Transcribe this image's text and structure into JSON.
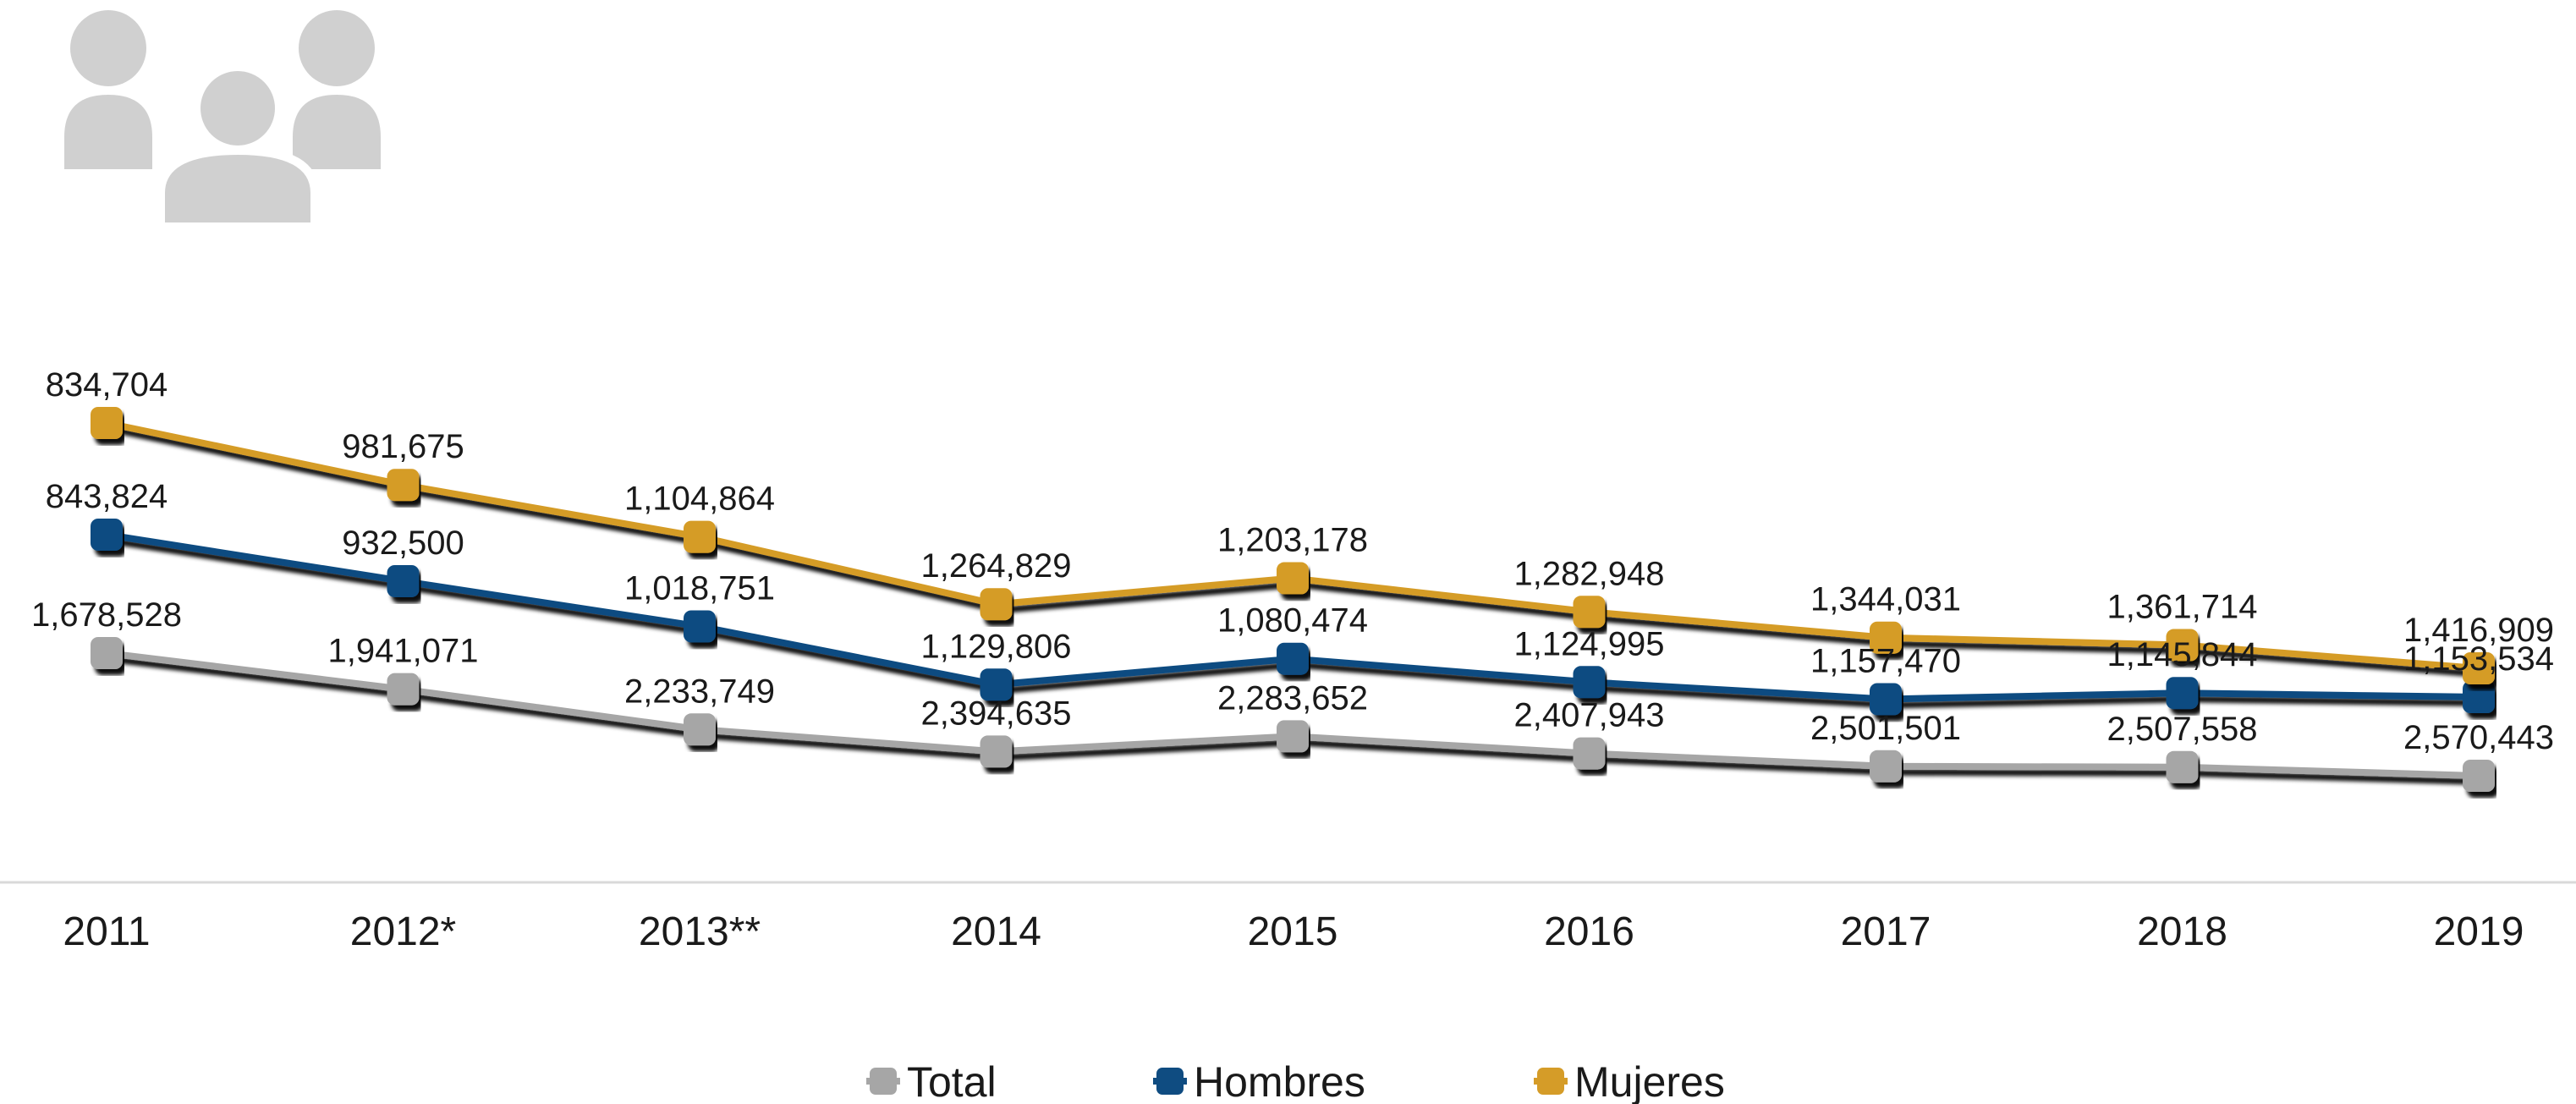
{
  "chart_data": {
    "type": "line",
    "categories": [
      "2011",
      "2012*",
      "2013**",
      "2014",
      "2015",
      "2016",
      "2017",
      "2018",
      "2019"
    ],
    "series": [
      {
        "name": "Total",
        "color": "#a6a6a6",
        "values": [
          1678528,
          1941071,
          2233749,
          2394635,
          2283652,
          2407943,
          2501501,
          2507558,
          2570443
        ],
        "labels": [
          "1,678,528",
          "1,941,071",
          "2,233,749",
          "2,394,635",
          "2,283,652",
          "2,407,943",
          "2,501,501",
          "2,507,558",
          "2,570,443"
        ]
      },
      {
        "name": "Hombres",
        "color": "#0f4c81",
        "values": [
          843824,
          932500,
          1018751,
          1129806,
          1080474,
          1124995,
          1157470,
          1145844,
          1153534
        ],
        "labels": [
          "843,824",
          "932,500",
          "1,018,751",
          "1,129,806",
          "1,080,474",
          "1,124,995",
          "1,157,470",
          "1,145,844",
          "1,153,534"
        ]
      },
      {
        "name": "Mujeres",
        "color": "#d59c28",
        "values": [
          834704,
          981675,
          1104864,
          1264829,
          1203178,
          1282948,
          1344031,
          1361714,
          1416909
        ],
        "labels": [
          "834,704",
          "981,675",
          "1,104,864",
          "1,264,829",
          "1,203,178",
          "1,282,948",
          "1,344,031",
          "1,361,714",
          "1,416,909"
        ]
      }
    ],
    "legend_position": "bottom",
    "grid": false,
    "icon": "people-group-icon"
  }
}
